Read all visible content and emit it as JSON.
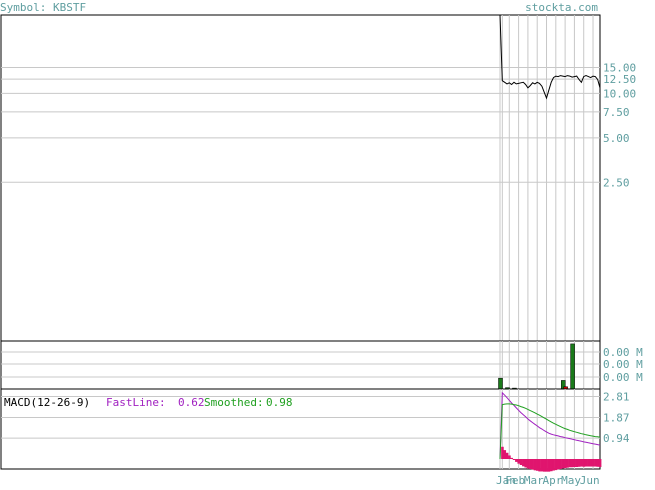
{
  "header": {
    "symbol_text": "Symbol: KBSTF",
    "site": "stockta.com"
  },
  "colors": {
    "header_text": "#5f9ea0",
    "axis_label": "#5f9ea0",
    "price_line": "#000000",
    "volume_up": "#1a7a1a",
    "volume_down": "#cc0000",
    "macd_fast": "#a020c0",
    "macd_smooth": "#20a020",
    "histogram": "#e0156e",
    "grid": "#c8c8c8"
  },
  "chart_data": [
    {
      "type": "line",
      "panel": "price",
      "y_scale": "log",
      "ylim": [
        0.21,
        34
      ],
      "y_ticks": [
        {
          "value": 15.0,
          "label": "15.00"
        },
        {
          "value": 12.5,
          "label": "12.50"
        },
        {
          "value": 10.0,
          "label": "10.00"
        },
        {
          "value": 7.5,
          "label": "7.50"
        },
        {
          "value": 5.0,
          "label": "5.00"
        },
        {
          "value": 2.5,
          "label": "2.50"
        }
      ],
      "x_tick_labels": [
        "Jan",
        "Feb",
        "Mar",
        "Apr",
        "May",
        "Jun"
      ],
      "series": [
        {
          "values": [
            34.0,
            12.2,
            11.9,
            11.6,
            11.8,
            11.5,
            11.9,
            11.6,
            11.7,
            11.8,
            11.9,
            11.5,
            10.9,
            11.3,
            11.8,
            11.6,
            11.9,
            11.7,
            11.2,
            10.2,
            9.3,
            10.5,
            11.9,
            12.8,
            13.1,
            13.0,
            13.2,
            13.1,
            13.0,
            13.2,
            13.1,
            12.9,
            13.0,
            13.1,
            12.4,
            11.9,
            13.0,
            13.2,
            13.0,
            12.8,
            13.1,
            13.0,
            12.4,
            10.9
          ]
        }
      ]
    },
    {
      "type": "bar",
      "panel": "volume",
      "unit": "M",
      "y_tick_labels": [
        "0.00 M",
        "0.00 M",
        "0.00 M"
      ],
      "bars": [
        {
          "index": 0,
          "value": 0.0024,
          "color": "up"
        },
        {
          "index": 3,
          "value": 0.0003,
          "color": "up"
        },
        {
          "index": 6,
          "value": 0.0002,
          "color": "up"
        },
        {
          "index": 27,
          "value": 0.0019,
          "color": "up"
        },
        {
          "index": 28,
          "value": 0.0005,
          "color": "down"
        },
        {
          "index": 31,
          "value": 0.01,
          "color": "up"
        }
      ],
      "ylim": [
        0,
        0.0102
      ]
    },
    {
      "type": "line",
      "panel": "macd",
      "title": "MACD(12-26-9)",
      "fast_label": "FastLine:",
      "fast_value": "0.62",
      "smooth_label": "Smoothed:",
      "smooth_value": "0.98",
      "ylim": [
        -0.45,
        3.15
      ],
      "y_ticks": [
        {
          "value": 2.81,
          "label": "2.81"
        },
        {
          "value": 1.87,
          "label": "1.87"
        },
        {
          "value": 0.94,
          "label": "0.94"
        }
      ],
      "series": [
        {
          "name": "FastLine",
          "values": [
            0.0,
            2.98,
            2.87,
            2.76,
            2.64,
            2.52,
            2.41,
            2.3,
            2.19,
            2.09,
            1.99,
            1.9,
            1.8,
            1.72,
            1.64,
            1.56,
            1.49,
            1.41,
            1.35,
            1.28,
            1.22,
            1.16,
            1.12,
            1.09,
            1.06,
            1.04,
            1.01,
            0.99,
            0.96,
            0.94,
            0.92,
            0.89,
            0.87,
            0.84,
            0.82,
            0.8,
            0.77,
            0.75,
            0.73,
            0.71,
            0.69,
            0.67,
            0.65,
            0.62
          ]
        },
        {
          "name": "Smoothed",
          "values": [
            0.0,
            2.45,
            2.47,
            2.48,
            2.48,
            2.47,
            2.45,
            2.43,
            2.4,
            2.36,
            2.32,
            2.28,
            2.23,
            2.18,
            2.13,
            2.08,
            2.02,
            1.97,
            1.91,
            1.85,
            1.79,
            1.73,
            1.67,
            1.61,
            1.56,
            1.51,
            1.46,
            1.41,
            1.37,
            1.33,
            1.29,
            1.26,
            1.23,
            1.2,
            1.17,
            1.14,
            1.12,
            1.09,
            1.07,
            1.05,
            1.03,
            1.01,
            1.0,
            0.98
          ]
        },
        {
          "name": "Histogram",
          "type": "bar",
          "values": [
            0.0,
            0.55,
            0.4,
            0.28,
            0.16,
            0.05,
            -0.04,
            -0.13,
            -0.21,
            -0.27,
            -0.33,
            -0.38,
            -0.43,
            -0.45,
            -0.48,
            -0.51,
            -0.53,
            -0.56,
            -0.56,
            -0.57,
            -0.57,
            -0.57,
            -0.55,
            -0.52,
            -0.5,
            -0.47,
            -0.45,
            -0.42,
            -0.41,
            -0.39,
            -0.37,
            -0.37,
            -0.36,
            -0.36,
            -0.35,
            -0.34,
            -0.35,
            -0.34,
            -0.34,
            -0.34,
            -0.34,
            -0.34,
            -0.35,
            -0.36
          ]
        }
      ]
    }
  ]
}
